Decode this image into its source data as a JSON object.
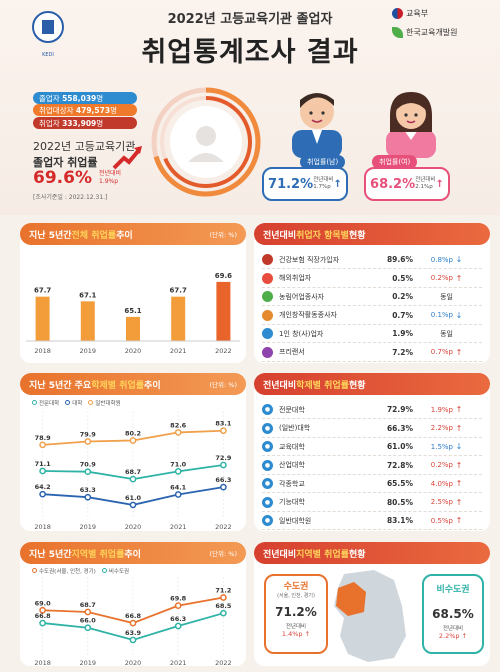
{
  "header": {
    "subtitle": "2022년 고등교육기관 졸업자",
    "title": "취업통계조사 결과",
    "org_ministry": "교육부",
    "org_institute": "한국교육개발원",
    "logo_caption": "KEDI"
  },
  "summary": {
    "graduates_label": "졸업자",
    "graduates_value": "558,039",
    "eligible_label": "취업대상자",
    "eligible_value": "479,573",
    "employed_label": "취업자",
    "employed_value": "333,909",
    "unit_people": "명",
    "rate_title_1": "2022년 고등교육기관",
    "rate_title_2": "졸업자 취업률",
    "rate_value": "69.6%",
    "rate_delta_label": "전년대비",
    "rate_delta_value": "1.9%p",
    "basis": "[조사기준일 : 2022.12.31.]"
  },
  "gender": {
    "male_label": "취업률(남)",
    "male_value": "71.2%",
    "male_delta_label": "전년대비",
    "male_delta": "1.7%p",
    "female_label": "취업률(여)",
    "female_value": "68.2%",
    "female_delta_label": "전년대비",
    "female_delta": "2.1%p"
  },
  "panels": {
    "p1_title_a": "지난 5년간 ",
    "p1_title_b": "전체 취업률",
    "p1_title_c": " 추이",
    "p1_unit": "(단위: %)",
    "p2_title_a": "지난 5년간 주요 ",
    "p2_title_b": "학제별 취업률",
    "p2_title_c": " 추이",
    "p2_unit": "(단위: %)",
    "p3_title_a": "지난 5년간 ",
    "p3_title_b": "지역별 취업률",
    "p3_title_c": " 추이",
    "p3_unit": "(단위: %)",
    "p4_title_a": "전년대비 ",
    "p4_title_b": "취업자 항목별",
    "p4_title_c": " 현황",
    "p5_title_a": "전년대비 ",
    "p5_title_b": "학제별 취업률",
    "p5_title_c": " 현황",
    "p6_title_a": "전년대비 ",
    "p6_title_b": "지역별 취업률",
    "p6_title_c": " 현황"
  },
  "employment_items": [
    {
      "name": "건강보험 직장가입자",
      "value": "89.6%",
      "delta": "0.8%p",
      "dir": "down",
      "color": "#c0392b"
    },
    {
      "name": "해외취업자",
      "value": "0.5%",
      "delta": "0.2%p",
      "dir": "up",
      "color": "#e74c3c"
    },
    {
      "name": "농림어업종사자",
      "value": "0.2%",
      "delta": "동일",
      "dir": "same",
      "color": "#4fae4a"
    },
    {
      "name": "개인창작활동종사자",
      "value": "0.7%",
      "delta": "0.1%p",
      "dir": "down",
      "color": "#e58a2e"
    },
    {
      "name": "1인 창(사)업자",
      "value": "1.9%",
      "delta": "동일",
      "dir": "same",
      "color": "#2d8bd0"
    },
    {
      "name": "프리랜서",
      "value": "7.2%",
      "delta": "0.7%p",
      "dir": "up",
      "color": "#8e44ad"
    }
  ],
  "school_types": [
    {
      "name": "전문대학",
      "value": "72.9%",
      "delta": "1.9%p",
      "dir": "up"
    },
    {
      "name": "(일반)대학",
      "value": "66.3%",
      "delta": "2.2%p",
      "dir": "up"
    },
    {
      "name": "교육대학",
      "value": "61.0%",
      "delta": "1.5%p",
      "dir": "down"
    },
    {
      "name": "산업대학",
      "value": "72.8%",
      "delta": "0.2%p",
      "dir": "up"
    },
    {
      "name": "각종학교",
      "value": "65.5%",
      "delta": "4.0%p",
      "dir": "up"
    },
    {
      "name": "기능대학",
      "value": "80.5%",
      "delta": "2.5%p",
      "dir": "up"
    },
    {
      "name": "일반대학원",
      "value": "83.1%",
      "delta": "0.5%p",
      "dir": "up"
    }
  ],
  "region": {
    "capital_label": "수도권",
    "capital_sub": "(서울, 인천, 경기)",
    "capital_value": "71.2%",
    "capital_delta_label": "전년대비",
    "capital_delta": "1.4%p",
    "noncap_label": "비수도권",
    "noncap_value": "68.5%",
    "noncap_delta_label": "전년대비",
    "noncap_delta": "2.2%p"
  },
  "arrows": {
    "up": "↑",
    "down": "↓",
    "same": ""
  },
  "chart_data": [
    {
      "type": "bar",
      "title": "지난 5년간 전체 취업률 추이",
      "unit": "(단위: %)",
      "categories": [
        "2018",
        "2019",
        "2020",
        "2021",
        "2022"
      ],
      "values": [
        67.7,
        67.1,
        65.1,
        67.7,
        69.6
      ],
      "colors": [
        "#f39c3a",
        "#f39c3a",
        "#f39c3a",
        "#f39c3a",
        "#e8642a"
      ]
    },
    {
      "type": "line",
      "title": "지난 5년간 주요 학제별 취업률 추이",
      "unit": "(단위: %)",
      "categories": [
        "2018",
        "2019",
        "2020",
        "2021",
        "2022"
      ],
      "legend": "top-left",
      "series": [
        {
          "name": "전문대학",
          "values": [
            71.1,
            70.9,
            68.7,
            71.0,
            72.9
          ],
          "color": "#2fb3a6"
        },
        {
          "name": "대학",
          "values": [
            64.2,
            63.3,
            61.0,
            64.1,
            66.3
          ],
          "color": "#2a64b0"
        },
        {
          "name": "일반대학원",
          "values": [
            78.9,
            79.9,
            80.2,
            82.6,
            83.1
          ],
          "color": "#f0a04b"
        }
      ]
    },
    {
      "type": "line",
      "title": "지난 5년간 지역별 취업률 추이",
      "unit": "(단위: %)",
      "categories": [
        "2018",
        "2019",
        "2020",
        "2021",
        "2022"
      ],
      "legend": "top-left",
      "series": [
        {
          "name": "수도권(서울, 인천, 경기)",
          "values": [
            69.0,
            68.7,
            66.8,
            69.8,
            71.2
          ],
          "color": "#e8722c"
        },
        {
          "name": "비수도권",
          "values": [
            66.8,
            66.0,
            63.9,
            66.3,
            68.5
          ],
          "color": "#2fb3a6"
        }
      ]
    }
  ]
}
